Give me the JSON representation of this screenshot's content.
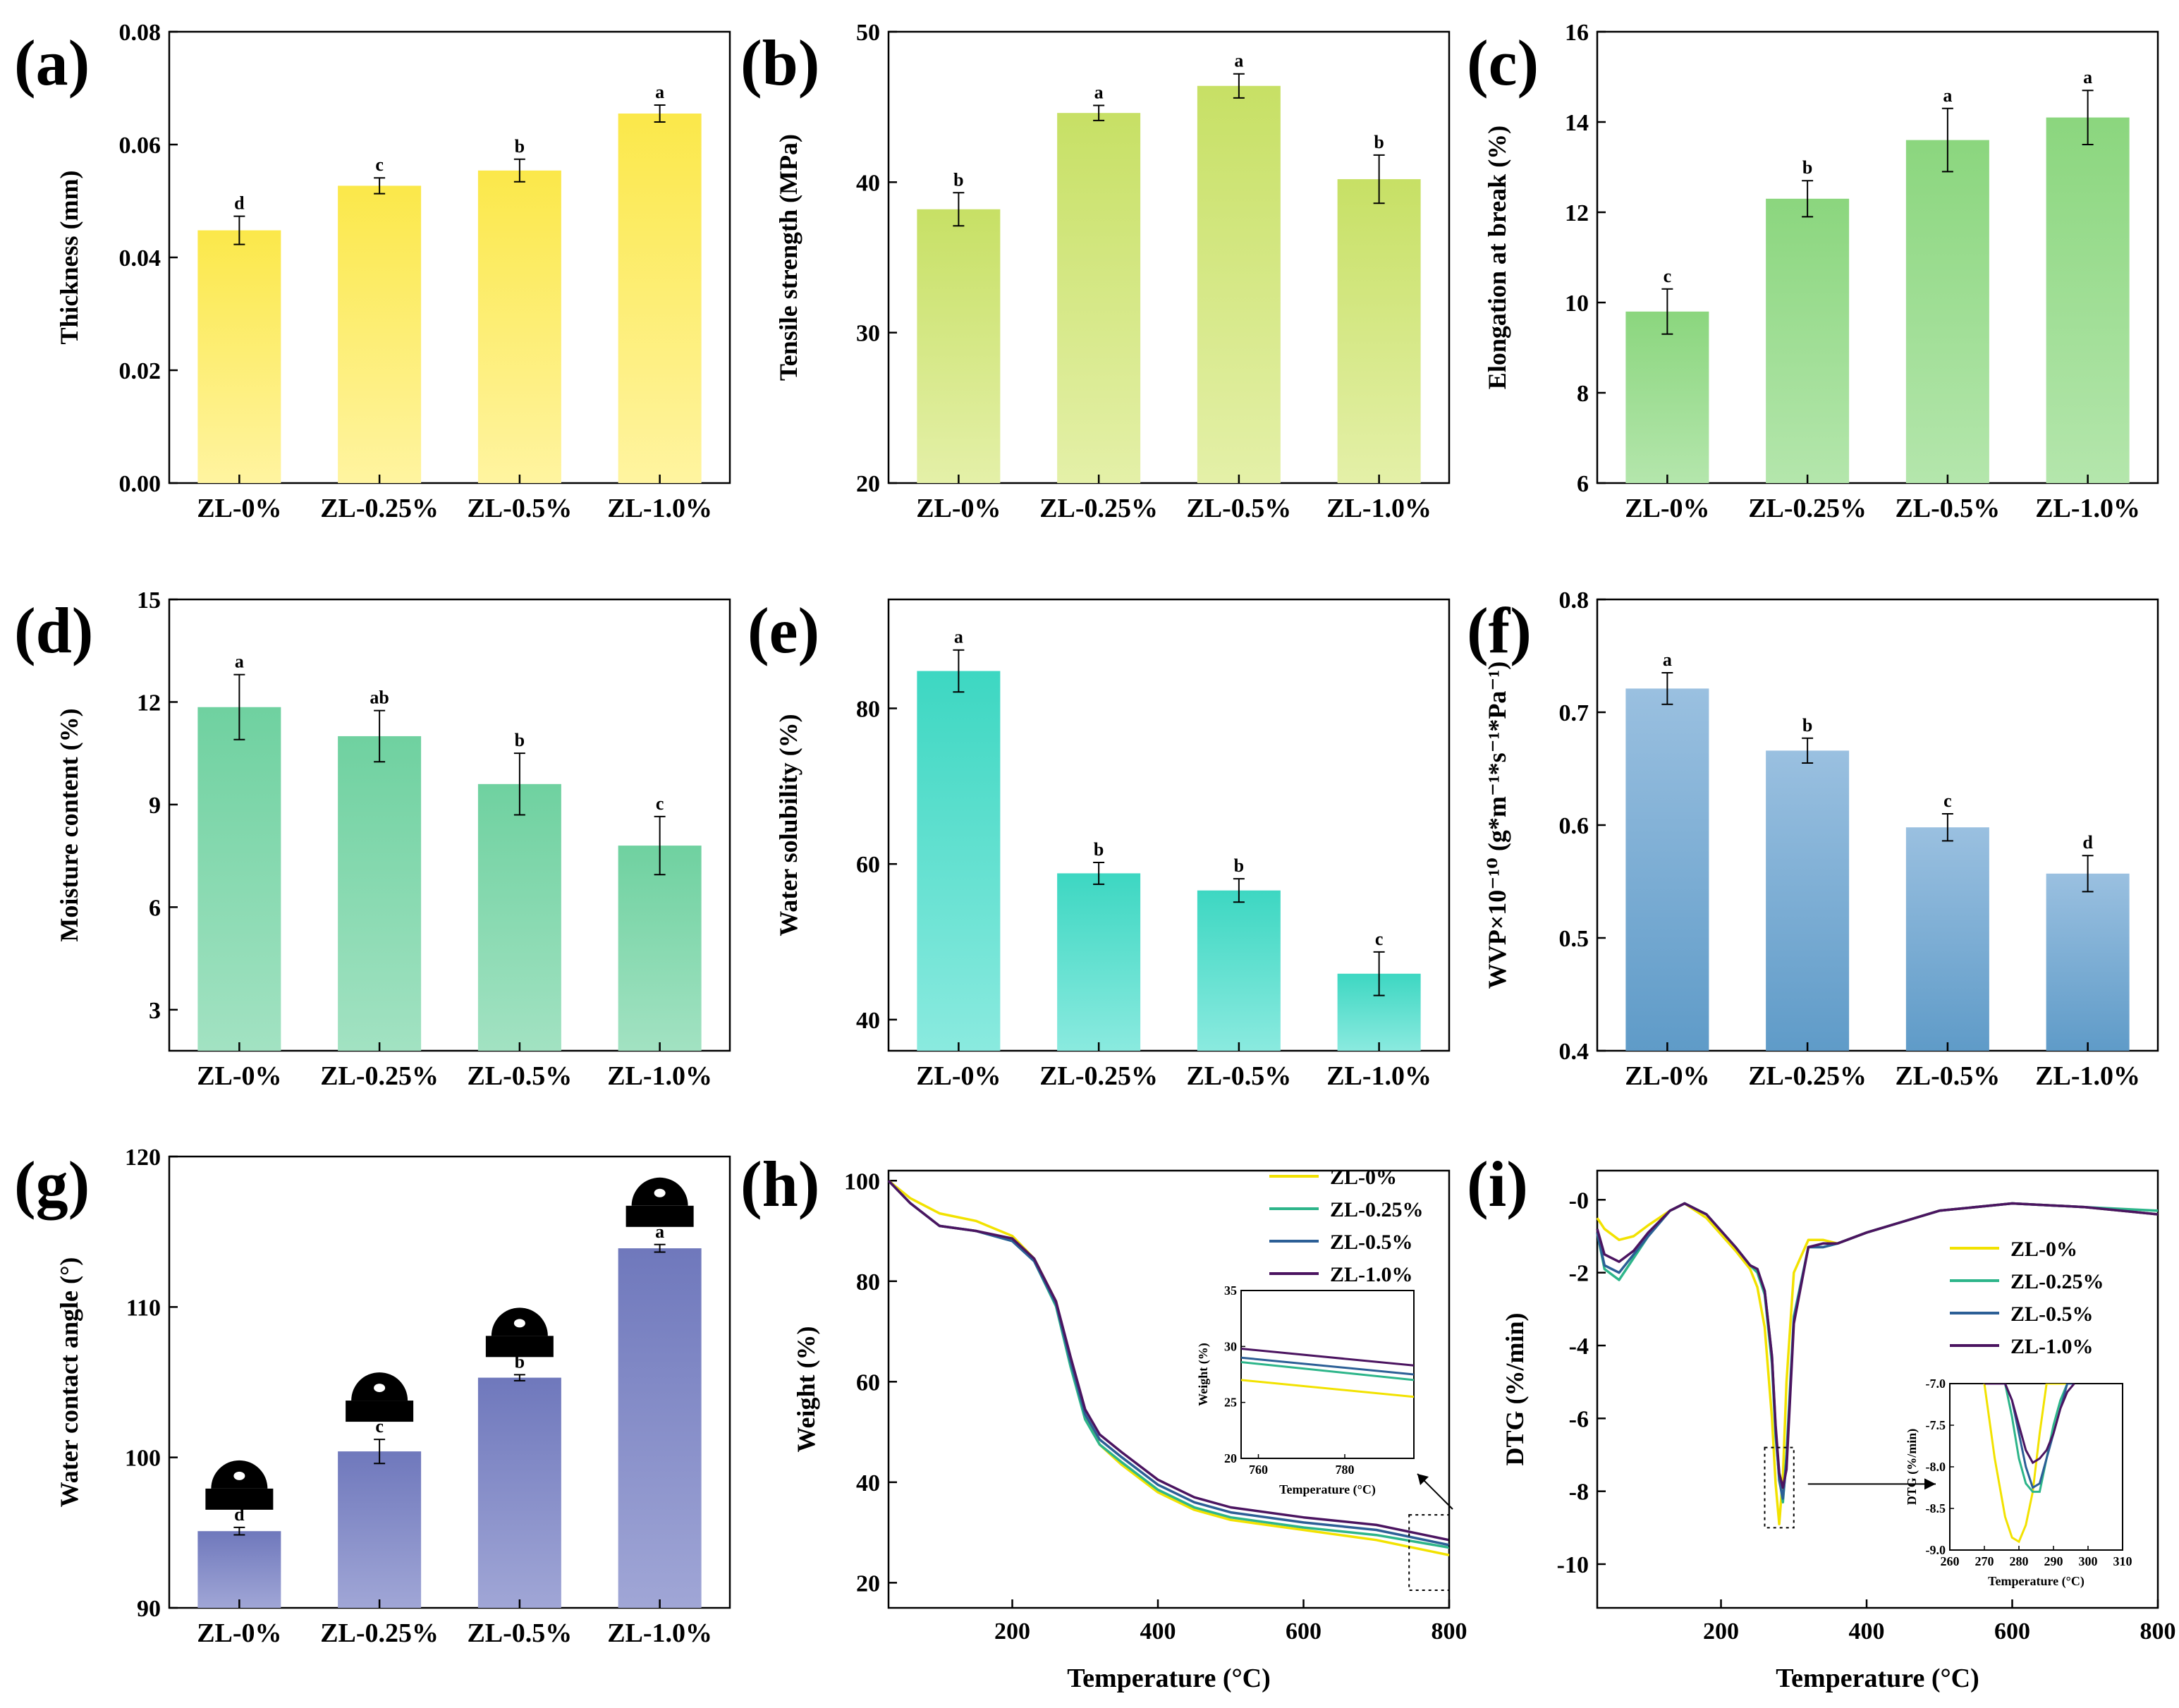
{
  "categories": [
    "ZL-0%",
    "ZL-0.25%",
    "ZL-0.5%",
    "ZL-1.0%"
  ],
  "colors": {
    "ZL-0%": "#f2e200",
    "ZL-0.25%": "#2db58a",
    "ZL-0.5%": "#2c5f96",
    "ZL-1.0%": "#4b1460"
  },
  "chart_data": [
    {
      "panel": "(a)",
      "type": "bar",
      "ylabel": "Thickness (mm)",
      "xlabel": "",
      "ylim": [
        0,
        0.08
      ],
      "yticks": [
        "0.00",
        "0.02",
        "0.04",
        "0.06",
        "0.08"
      ],
      "values": [
        0.0448,
        0.0527,
        0.0554,
        0.0655
      ],
      "errors": [
        0.0025,
        0.0014,
        0.002,
        0.0015
      ],
      "letters": [
        "d",
        "c",
        "b",
        "a"
      ],
      "colors": [
        "#fff4a0",
        "#fbe84a"
      ]
    },
    {
      "panel": "(b)",
      "type": "bar",
      "ylabel": "Tensile strength (MPa)",
      "xlabel": "",
      "ylim": [
        20,
        50
      ],
      "yticks": [
        "20",
        "30",
        "40",
        "50"
      ],
      "values": [
        38.2,
        44.6,
        46.4,
        40.2
      ],
      "errors": [
        1.1,
        0.5,
        0.8,
        1.6
      ],
      "letters": [
        "b",
        "a",
        "a",
        "b"
      ],
      "colors": [
        "#e4f0a8",
        "#c7e065"
      ]
    },
    {
      "panel": "(c)",
      "type": "bar",
      "ylabel": "Elongation at break (%)",
      "xlabel": "",
      "ylim": [
        6,
        16
      ],
      "yticks": [
        "6",
        "8",
        "10",
        "12",
        "14",
        "16"
      ],
      "values": [
        9.8,
        12.3,
        13.6,
        14.1
      ],
      "errors": [
        0.5,
        0.4,
        0.7,
        0.6
      ],
      "letters": [
        "c",
        "b",
        "a",
        "a"
      ],
      "colors": [
        "#b4e6ac",
        "#8bd67e"
      ]
    },
    {
      "panel": "(d)",
      "type": "bar",
      "ylabel": "Moisture content (%)",
      "xlabel": "",
      "ylim": [
        1.8,
        15
      ],
      "yticks": [
        "3",
        "6",
        "9",
        "12",
        "15"
      ],
      "values": [
        11.85,
        11.0,
        9.6,
        7.8
      ],
      "errors": [
        0.95,
        0.75,
        0.9,
        0.85
      ],
      "letters": [
        "a",
        "ab",
        "b",
        "c"
      ],
      "colors": [
        "#a2e2c2",
        "#6fd1a0"
      ]
    },
    {
      "panel": "(e)",
      "type": "bar",
      "ylabel": "Water solubility (%)",
      "xlabel": "",
      "ylim": [
        36,
        94
      ],
      "yticks": [
        "40",
        "60",
        "80"
      ],
      "values": [
        84.8,
        58.8,
        56.6,
        45.9
      ],
      "errors": [
        2.7,
        1.4,
        1.5,
        2.8
      ],
      "letters": [
        "a",
        "b",
        "b",
        "c"
      ],
      "colors": [
        "#8aeadf",
        "#3dd7c2"
      ]
    },
    {
      "panel": "(f)",
      "type": "bar",
      "ylabel": "WVP×10⁻¹⁰ (g*m⁻¹*s⁻¹*Pa⁻¹)",
      "xlabel": "",
      "ylim": [
        0.4,
        0.8
      ],
      "yticks": [
        "0.4",
        "0.5",
        "0.6",
        "0.7",
        "0.8"
      ],
      "values": [
        0.721,
        0.666,
        0.598,
        0.557
      ],
      "errors": [
        0.014,
        0.011,
        0.012,
        0.016
      ],
      "letters": [
        "a",
        "b",
        "c",
        "d"
      ],
      "colors": [
        "#5f9bc8",
        "#9ac0e0"
      ]
    },
    {
      "panel": "(g)",
      "type": "bar",
      "ylabel": "Water contact angle (°)",
      "xlabel": "",
      "ylim": [
        90,
        120
      ],
      "yticks": [
        "90",
        "100",
        "110",
        "120"
      ],
      "values": [
        95.1,
        100.4,
        105.3,
        113.9
      ],
      "errors": [
        0.25,
        0.8,
        0.2,
        0.25
      ],
      "letters": [
        "d",
        "c",
        "b",
        "a"
      ],
      "colors": [
        "#a0a6d6",
        "#6f78bc"
      ]
    },
    {
      "panel": "(h)",
      "type": "line",
      "xlabel": "Temperature (°C)",
      "ylabel": "Weight (%)",
      "xlim": [
        30,
        800
      ],
      "ylim": [
        15,
        102
      ],
      "xticks": [
        "200",
        "400",
        "600",
        "800"
      ],
      "yticks": [
        "20",
        "40",
        "60",
        "80",
        "100"
      ],
      "legend": [
        "ZL-0%",
        "ZL-0.25%",
        "ZL-0.5%",
        "ZL-1.0%"
      ],
      "x": [
        30,
        60,
        100,
        150,
        200,
        230,
        260,
        280,
        300,
        320,
        350,
        400,
        450,
        500,
        600,
        700,
        800
      ],
      "series": [
        {
          "name": "ZL-0%",
          "values": [
            100,
            96.5,
            93.5,
            92,
            89,
            84.5,
            76,
            64,
            53,
            47.5,
            43.5,
            38,
            34.5,
            32.5,
            30.5,
            28.5,
            25.5
          ]
        },
        {
          "name": "ZL-0.25%",
          "values": [
            100,
            95.5,
            91,
            90,
            88,
            84,
            75,
            63,
            52.5,
            47.5,
            44,
            38.5,
            35,
            33,
            31,
            29.5,
            27
          ]
        },
        {
          "name": "ZL-0.5%",
          "values": [
            100,
            95.5,
            91,
            90,
            88,
            84,
            75.5,
            64,
            53.5,
            48.5,
            45,
            39.5,
            36,
            34,
            32,
            30.5,
            27.5
          ]
        },
        {
          "name": "ZL-1.0%",
          "values": [
            100,
            95.5,
            91,
            90,
            88.5,
            84.5,
            76,
            65,
            54.5,
            49.5,
            46,
            40.5,
            37,
            35,
            33,
            31.5,
            28.5
          ]
        }
      ],
      "inset": {
        "xlabel": "Temperature (°C)",
        "ylabel": "Weight (%)",
        "xlim": [
          756,
          796
        ],
        "ylim": [
          20,
          35
        ],
        "xticks": [
          "760",
          "780"
        ],
        "yticks": [
          "20",
          "25",
          "30",
          "35"
        ],
        "x": [
          756,
          796
        ],
        "series": [
          {
            "name": "ZL-0%",
            "values": [
              27.0,
              25.5
            ]
          },
          {
            "name": "ZL-0.25%",
            "values": [
              28.6,
              27.0
            ]
          },
          {
            "name": "ZL-0.5%",
            "values": [
              29.0,
              27.5
            ]
          },
          {
            "name": "ZL-1.0%",
            "values": [
              29.8,
              28.3
            ]
          }
        ]
      }
    },
    {
      "panel": "(i)",
      "type": "line",
      "xlabel": "Temperature (°C)",
      "ylabel": "DTG (%/min)",
      "xlim": [
        30,
        800
      ],
      "ylim": [
        -11.2,
        0.8
      ],
      "xticks": [
        "200",
        "400",
        "600",
        "800"
      ],
      "yticks": [
        "-10",
        "-8",
        "-6",
        "-4",
        "-2",
        "-0"
      ],
      "legend": [
        "ZL-0%",
        "ZL-0.25%",
        "ZL-0.5%",
        "ZL-1.0%"
      ],
      "x": [
        30,
        40,
        60,
        80,
        100,
        130,
        150,
        180,
        220,
        240,
        250,
        260,
        270,
        275,
        280,
        285,
        290,
        300,
        320,
        340,
        360,
        400,
        500,
        600,
        700,
        800
      ],
      "series": [
        {
          "name": "ZL-0%",
          "values": [
            -0.5,
            -0.8,
            -1.1,
            -1.0,
            -0.7,
            -0.3,
            -0.1,
            -0.5,
            -1.4,
            -1.9,
            -2.4,
            -3.5,
            -6.0,
            -7.8,
            -8.9,
            -7.6,
            -5.0,
            -2.0,
            -1.1,
            -1.1,
            -1.2,
            -0.9,
            -0.3,
            -0.1,
            -0.2,
            -0.4
          ]
        },
        {
          "name": "ZL-0.25%",
          "values": [
            -0.9,
            -1.9,
            -2.2,
            -1.6,
            -1.0,
            -0.3,
            -0.1,
            -0.4,
            -1.3,
            -1.8,
            -2.0,
            -2.6,
            -4.5,
            -6.5,
            -7.6,
            -8.3,
            -7.0,
            -3.2,
            -1.3,
            -1.3,
            -1.2,
            -0.9,
            -0.3,
            -0.1,
            -0.2,
            -0.3
          ]
        },
        {
          "name": "ZL-0.5%",
          "values": [
            -0.9,
            -1.8,
            -2.0,
            -1.5,
            -1.0,
            -0.3,
            -0.1,
            -0.4,
            -1.3,
            -1.8,
            -1.9,
            -2.5,
            -4.3,
            -6.3,
            -7.7,
            -8.2,
            -7.2,
            -3.3,
            -1.3,
            -1.3,
            -1.2,
            -0.9,
            -0.3,
            -0.1,
            -0.2,
            -0.4
          ]
        },
        {
          "name": "ZL-1.0%",
          "values": [
            -0.8,
            -1.5,
            -1.7,
            -1.4,
            -0.9,
            -0.3,
            -0.1,
            -0.4,
            -1.3,
            -1.8,
            -1.9,
            -2.5,
            -4.3,
            -6.2,
            -7.5,
            -7.9,
            -7.4,
            -3.4,
            -1.3,
            -1.2,
            -1.2,
            -0.9,
            -0.3,
            -0.1,
            -0.2,
            -0.4
          ]
        }
      ],
      "inset": {
        "xlabel": "Temperature (°C)",
        "ylabel": "DTG (%/min)",
        "xlim": [
          260,
          310
        ],
        "ylim": [
          -9.0,
          -7.0
        ],
        "xticks": [
          "260",
          "270",
          "280",
          "290",
          "300",
          "310"
        ],
        "yticks": [
          "-9.0",
          "-8.5",
          "-8.0",
          "-7.5",
          "-7.0"
        ],
        "x": [
          270,
          273,
          276,
          278,
          280,
          282,
          284,
          286,
          288,
          290,
          292,
          294,
          296
        ],
        "series": [
          {
            "name": "ZL-0%",
            "values": [
              -7.0,
              -7.9,
              -8.6,
              -8.85,
              -8.9,
              -8.7,
              -8.3,
              -7.6,
              -7.0,
              -7.0,
              -7.0,
              -7.0,
              -7.0
            ]
          },
          {
            "name": "ZL-0.25%",
            "values": [
              -7.0,
              -7.0,
              -7.0,
              -7.4,
              -7.9,
              -8.2,
              -8.3,
              -8.3,
              -7.9,
              -7.5,
              -7.2,
              -7.0,
              -7.0
            ]
          },
          {
            "name": "ZL-0.5%",
            "values": [
              -7.0,
              -7.0,
              -7.0,
              -7.2,
              -7.6,
              -8.0,
              -8.25,
              -8.2,
              -7.9,
              -7.6,
              -7.3,
              -7.0,
              -7.0
            ]
          },
          {
            "name": "ZL-1.0%",
            "values": [
              -7.0,
              -7.0,
              -7.0,
              -7.2,
              -7.5,
              -7.8,
              -7.95,
              -7.9,
              -7.8,
              -7.6,
              -7.3,
              -7.1,
              -7.0
            ]
          }
        ]
      }
    }
  ]
}
